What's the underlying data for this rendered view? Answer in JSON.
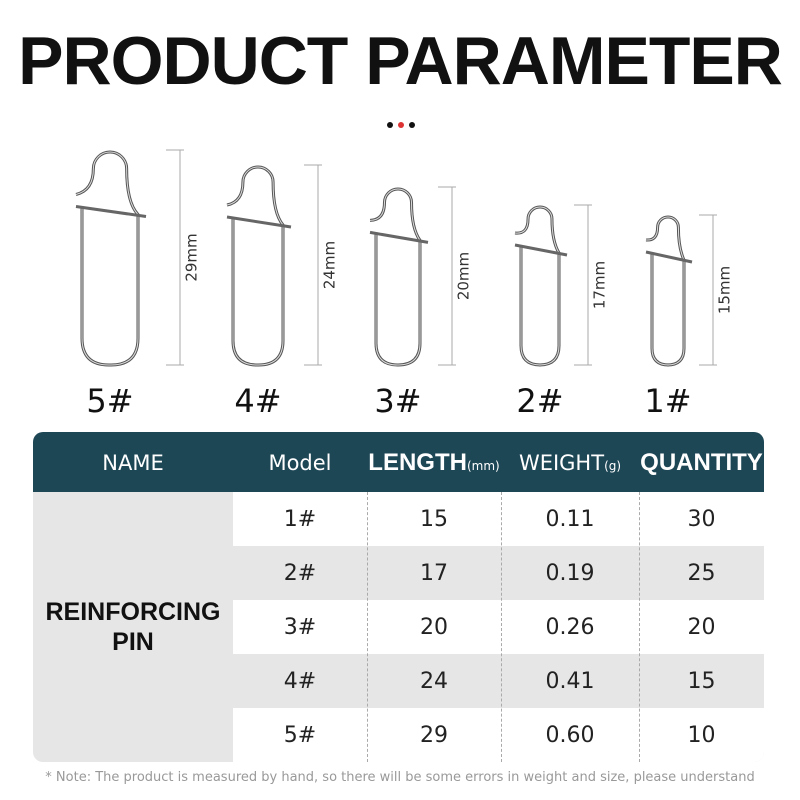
{
  "header": {
    "title": "PRODUCT PARAMETER"
  },
  "pins": [
    {
      "label": "5#",
      "size": "29mm"
    },
    {
      "label": "4#",
      "size": "24mm"
    },
    {
      "label": "3#",
      "size": "20mm"
    },
    {
      "label": "2#",
      "size": "17mm"
    },
    {
      "label": "1#",
      "size": "15mm"
    }
  ],
  "table": {
    "columns": [
      {
        "label": "NAME"
      },
      {
        "label": "Model"
      },
      {
        "label": "LENGTH",
        "unit": "(mm)"
      },
      {
        "label": "WEIGHT",
        "unit": "(g)"
      },
      {
        "label": "QUANTITY"
      }
    ],
    "name": "REINFORCING PIN",
    "rows": [
      [
        "1#",
        "15",
        "0.11",
        "30"
      ],
      [
        "2#",
        "17",
        "0.19",
        "25"
      ],
      [
        "3#",
        "20",
        "0.26",
        "20"
      ],
      [
        "4#",
        "24",
        "0.41",
        "15"
      ],
      [
        "5#",
        "29",
        "0.60",
        "10"
      ]
    ]
  },
  "note": "* Note: The product is measured by hand, so there will be some errors in weight and size, please understand"
}
